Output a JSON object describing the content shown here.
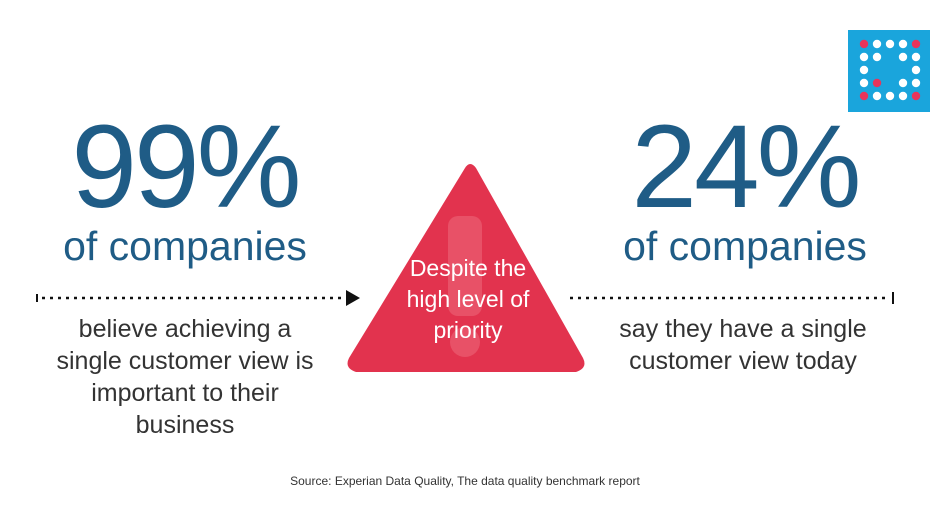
{
  "left_stat": {
    "value": "99%",
    "label": "of companies",
    "description": "believe achieving a single customer view is important to their business"
  },
  "center": {
    "text": "Despite the high level of priority",
    "icon": "exclamation-warning-triangle-icon"
  },
  "right_stat": {
    "value": "24%",
    "label": "of companies",
    "description": "say they have a single customer view today"
  },
  "source": "Source: Experian Data Quality, The data quality benchmark report",
  "logo": {
    "icon": "dot-matrix-logo-icon"
  },
  "colors": {
    "stat_blue": "#1f5c86",
    "warning_red": "#e2334e",
    "logo_blue": "#1aa5dc",
    "logo_pink": "#e8345a",
    "text_dark": "#333333"
  }
}
